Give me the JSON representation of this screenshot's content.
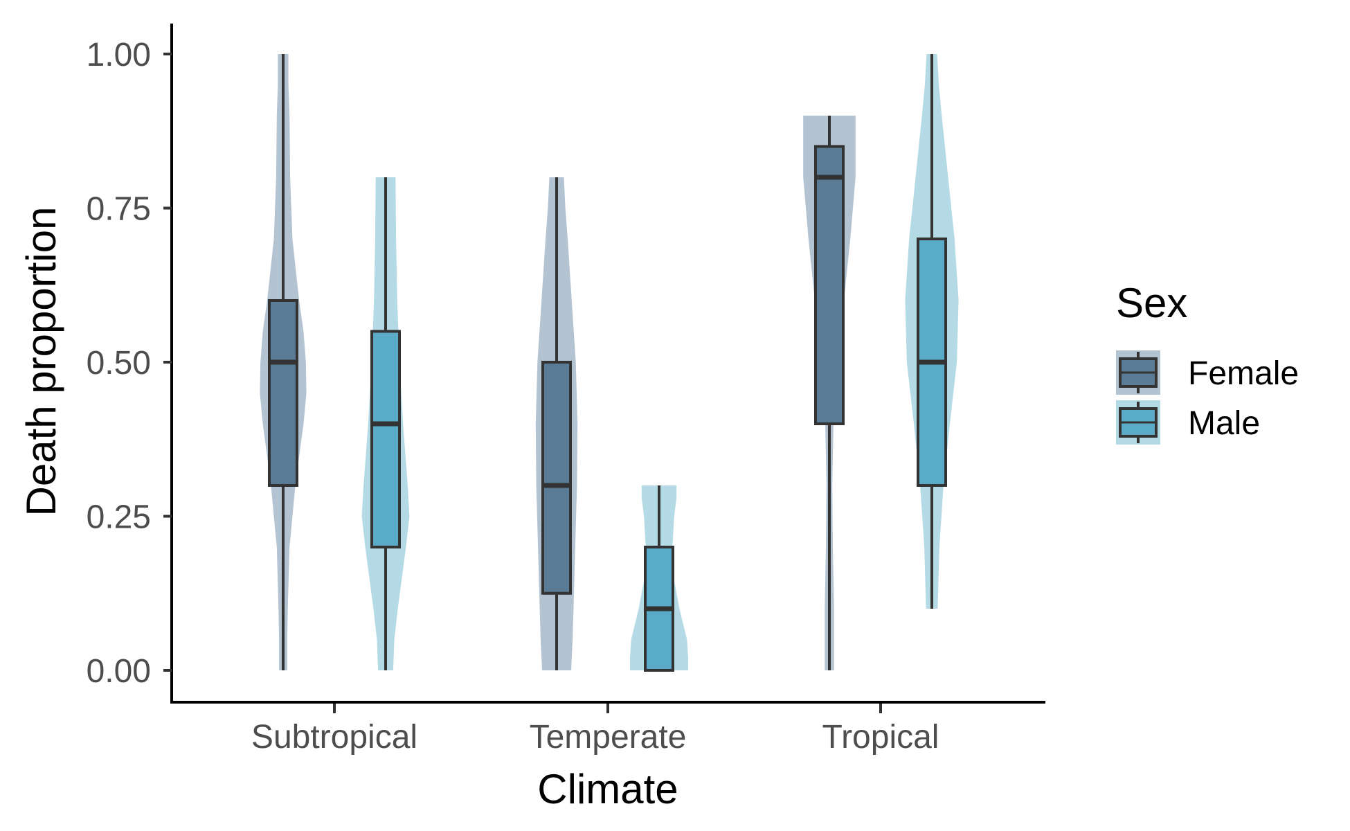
{
  "chart_data": {
    "type": "violin-boxplot",
    "xlabel": "Climate",
    "ylabel": "Death proportion",
    "categories": [
      "Subtropical",
      "Temperate",
      "Tropical"
    ],
    "ylim": [
      0,
      1
    ],
    "yticks": [
      "0.00",
      "0.25",
      "0.50",
      "0.75",
      "1.00"
    ],
    "ytick_values": [
      0,
      0.25,
      0.5,
      0.75,
      1.0
    ],
    "grid": false,
    "legend": {
      "title": "Sex",
      "placement": "right",
      "entries": [
        "Female",
        "Male"
      ]
    },
    "series": [
      {
        "name": "Female",
        "box_color": "#5a7b96",
        "violin_color": "#b3c3d1",
        "stats": [
          {
            "category": "Subtropical",
            "min": 0.0,
            "q1": 0.3,
            "median": 0.5,
            "q3": 0.6,
            "max": 1.0
          },
          {
            "category": "Temperate",
            "min": 0.0,
            "q1": 0.125,
            "median": 0.3,
            "q3": 0.5,
            "max": 0.8
          },
          {
            "category": "Tropical",
            "min": 0.0,
            "q1": 0.4,
            "median": 0.8,
            "q3": 0.85,
            "max": 0.9
          }
        ],
        "density": [
          [
            [
              0.0,
              0.14
            ],
            [
              0.05,
              0.14
            ],
            [
              0.1,
              0.16
            ],
            [
              0.2,
              0.22
            ],
            [
              0.3,
              0.42
            ],
            [
              0.4,
              0.7
            ],
            [
              0.45,
              0.8
            ],
            [
              0.5,
              0.78
            ],
            [
              0.55,
              0.7
            ],
            [
              0.6,
              0.55
            ],
            [
              0.7,
              0.32
            ],
            [
              0.8,
              0.24
            ],
            [
              0.9,
              0.22
            ],
            [
              0.95,
              0.18
            ],
            [
              1.0,
              0.18
            ]
          ],
          [
            [
              0.0,
              0.5
            ],
            [
              0.05,
              0.55
            ],
            [
              0.1,
              0.58
            ],
            [
              0.2,
              0.64
            ],
            [
              0.3,
              0.7
            ],
            [
              0.4,
              0.72
            ],
            [
              0.5,
              0.66
            ],
            [
              0.6,
              0.52
            ],
            [
              0.7,
              0.38
            ],
            [
              0.75,
              0.3
            ],
            [
              0.8,
              0.25
            ]
          ],
          [
            [
              0.0,
              0.16
            ],
            [
              0.1,
              0.16
            ],
            [
              0.2,
              0.12
            ],
            [
              0.3,
              0.1
            ],
            [
              0.4,
              0.14
            ],
            [
              0.5,
              0.3
            ],
            [
              0.6,
              0.5
            ],
            [
              0.7,
              0.72
            ],
            [
              0.8,
              0.9
            ],
            [
              0.85,
              0.9
            ],
            [
              0.9,
              0.9
            ]
          ]
        ]
      },
      {
        "name": "Male",
        "box_color": "#5aabc7",
        "violin_color": "#b4dae5",
        "stats": [
          {
            "category": "Subtropical",
            "min": 0.0,
            "q1": 0.2,
            "median": 0.4,
            "q3": 0.55,
            "max": 0.8
          },
          {
            "category": "Temperate",
            "min": 0.0,
            "q1": 0.0,
            "median": 0.1,
            "q3": 0.2,
            "max": 0.3
          },
          {
            "category": "Tropical",
            "min": 0.1,
            "q1": 0.3,
            "median": 0.5,
            "q3": 0.7,
            "max": 1.0
          }
        ],
        "density": [
          [
            [
              0.0,
              0.26
            ],
            [
              0.05,
              0.3
            ],
            [
              0.1,
              0.42
            ],
            [
              0.2,
              0.7
            ],
            [
              0.25,
              0.82
            ],
            [
              0.3,
              0.76
            ],
            [
              0.4,
              0.6
            ],
            [
              0.5,
              0.48
            ],
            [
              0.6,
              0.4
            ],
            [
              0.7,
              0.36
            ],
            [
              0.8,
              0.34
            ]
          ],
          [
            [
              0.0,
              1.0
            ],
            [
              0.02,
              1.0
            ],
            [
              0.05,
              0.96
            ],
            [
              0.1,
              0.7
            ],
            [
              0.15,
              0.5
            ],
            [
              0.2,
              0.46
            ],
            [
              0.25,
              0.52
            ],
            [
              0.28,
              0.6
            ],
            [
              0.3,
              0.6
            ]
          ],
          [
            [
              0.1,
              0.2
            ],
            [
              0.2,
              0.26
            ],
            [
              0.3,
              0.4
            ],
            [
              0.4,
              0.62
            ],
            [
              0.5,
              0.86
            ],
            [
              0.6,
              0.92
            ],
            [
              0.7,
              0.78
            ],
            [
              0.8,
              0.56
            ],
            [
              0.9,
              0.34
            ],
            [
              0.95,
              0.24
            ],
            [
              1.0,
              0.18
            ]
          ]
        ]
      }
    ]
  }
}
